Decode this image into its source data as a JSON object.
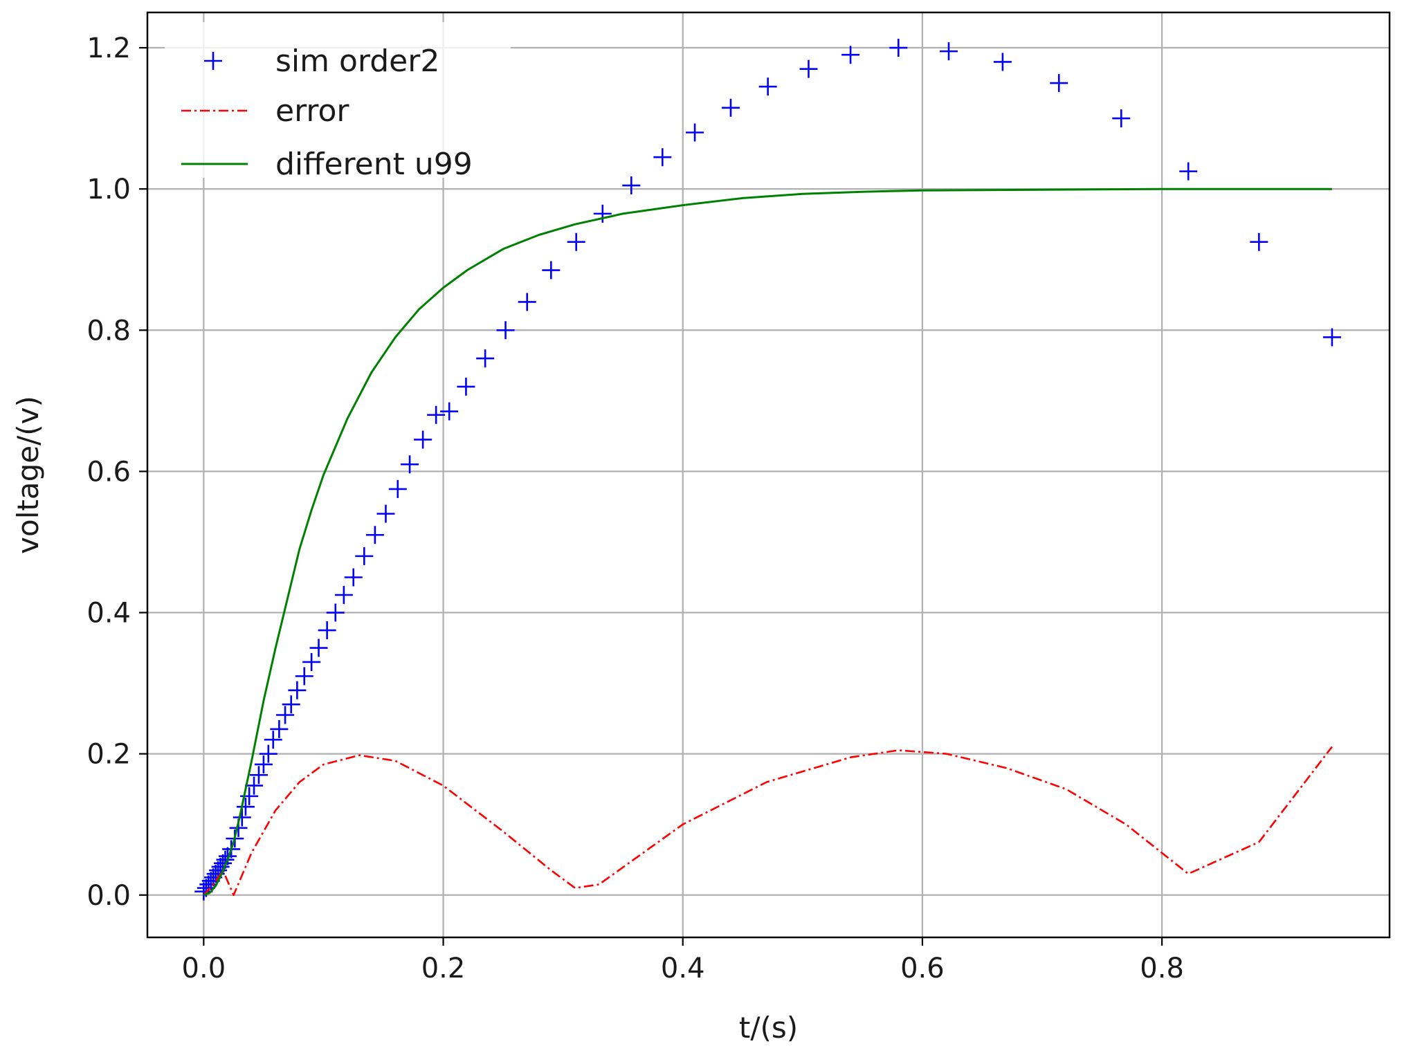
{
  "chart_data": {
    "type": "line",
    "xlabel": "t/(s)",
    "ylabel": "voltage/(v)",
    "xlim": [
      -0.047,
      0.99
    ],
    "ylim": [
      -0.06,
      1.25
    ],
    "xticks": [
      0.0,
      0.2,
      0.4,
      0.6,
      0.8
    ],
    "xtick_labels": [
      "0.0",
      "0.2",
      "0.4",
      "0.6",
      "0.8"
    ],
    "yticks": [
      0.0,
      0.2,
      0.4,
      0.6,
      0.8,
      1.0,
      1.2
    ],
    "ytick_labels": [
      "0.0",
      "0.2",
      "0.4",
      "0.6",
      "0.8",
      "1.0",
      "1.2"
    ],
    "grid": true,
    "legend_position": "top-left",
    "series": [
      {
        "name": "sim order2",
        "kind": "scatter",
        "marker": "plus",
        "color": "#0000ff",
        "x": [
          0.0,
          0.002,
          0.004,
          0.006,
          0.008,
          0.01,
          0.012,
          0.014,
          0.016,
          0.018,
          0.02,
          0.023,
          0.026,
          0.029,
          0.032,
          0.035,
          0.038,
          0.042,
          0.046,
          0.05,
          0.054,
          0.058,
          0.063,
          0.068,
          0.073,
          0.078,
          0.084,
          0.09,
          0.096,
          0.103,
          0.11,
          0.117,
          0.125,
          0.134,
          0.143,
          0.152,
          0.162,
          0.172,
          0.183,
          0.194,
          0.205,
          0.219,
          0.235,
          0.252,
          0.27,
          0.29,
          0.311,
          0.333,
          0.357,
          0.383,
          0.41,
          0.44,
          0.471,
          0.505,
          0.54,
          0.58,
          0.622,
          0.667,
          0.714,
          0.766,
          0.822,
          0.881,
          0.942
        ],
        "y": [
          0.005,
          0.01,
          0.015,
          0.02,
          0.025,
          0.03,
          0.035,
          0.04,
          0.045,
          0.05,
          0.055,
          0.065,
          0.08,
          0.095,
          0.11,
          0.125,
          0.14,
          0.155,
          0.17,
          0.185,
          0.2,
          0.22,
          0.235,
          0.255,
          0.27,
          0.29,
          0.31,
          0.33,
          0.35,
          0.375,
          0.4,
          0.425,
          0.45,
          0.48,
          0.51,
          0.54,
          0.575,
          0.61,
          0.645,
          0.68,
          0.685,
          0.72,
          0.76,
          0.8,
          0.84,
          0.885,
          0.925,
          0.965,
          1.005,
          1.045,
          1.08,
          1.115,
          1.145,
          1.17,
          1.19,
          1.2,
          1.195,
          1.18,
          1.15,
          1.1,
          1.025,
          0.925,
          0.79
        ]
      },
      {
        "name": "error",
        "kind": "line",
        "linestyle": "dashdot",
        "color": "#ff0000",
        "x": [
          0.0,
          0.008,
          0.016,
          0.025,
          0.04,
          0.06,
          0.08,
          0.1,
          0.13,
          0.16,
          0.2,
          0.25,
          0.29,
          0.31,
          0.33,
          0.4,
          0.47,
          0.54,
          0.58,
          0.62,
          0.67,
          0.72,
          0.77,
          0.822,
          0.881,
          0.942
        ],
        "y": [
          0.0,
          0.015,
          0.035,
          0.0,
          0.06,
          0.12,
          0.16,
          0.185,
          0.198,
          0.19,
          0.155,
          0.09,
          0.035,
          0.01,
          0.015,
          0.1,
          0.16,
          0.195,
          0.205,
          0.2,
          0.18,
          0.15,
          0.1,
          0.03,
          0.075,
          0.21
        ]
      },
      {
        "name": "different u99",
        "kind": "line",
        "linestyle": "solid",
        "color": "#008000",
        "x": [
          0.0,
          0.005,
          0.01,
          0.015,
          0.02,
          0.025,
          0.03,
          0.035,
          0.04,
          0.05,
          0.06,
          0.07,
          0.08,
          0.09,
          0.1,
          0.12,
          0.14,
          0.16,
          0.18,
          0.2,
          0.22,
          0.25,
          0.28,
          0.31,
          0.35,
          0.4,
          0.45,
          0.5,
          0.55,
          0.6,
          0.7,
          0.8,
          0.9,
          0.942
        ],
        "y": [
          0.0,
          0.003,
          0.013,
          0.03,
          0.05,
          0.075,
          0.11,
          0.15,
          0.19,
          0.275,
          0.35,
          0.42,
          0.49,
          0.545,
          0.595,
          0.675,
          0.74,
          0.79,
          0.83,
          0.86,
          0.885,
          0.915,
          0.935,
          0.95,
          0.965,
          0.977,
          0.987,
          0.993,
          0.996,
          0.998,
          0.999,
          1.0,
          1.0,
          1.0
        ]
      }
    ]
  }
}
